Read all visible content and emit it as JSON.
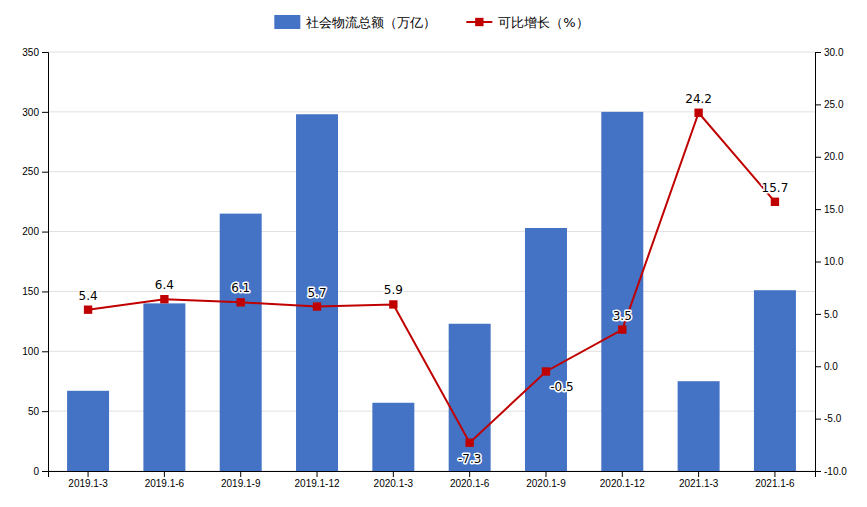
{
  "chart_data": {
    "type": "bar",
    "categories": [
      "2019.1-3",
      "2019.1-6",
      "2019.1-9",
      "2019.1-12",
      "2020.1-3",
      "2020.1-6",
      "2020.1-9",
      "2020.1-12",
      "2021.1-3",
      "2021.1-6"
    ],
    "series": [
      {
        "name": "社会物流总额（万亿）",
        "type": "bar",
        "color": "#4472C4",
        "values": [
          67,
          140,
          215,
          298,
          57,
          123,
          203,
          300,
          75,
          151
        ]
      },
      {
        "name": "可比增长（%）",
        "type": "line",
        "axis": "y2",
        "color": "#C00000",
        "marker": "square",
        "data_labels": true,
        "values": [
          5.4,
          6.4,
          6.1,
          5.7,
          5.9,
          -7.3,
          -0.5,
          3.5,
          24.2,
          15.7
        ]
      }
    ],
    "ylim": [
      0,
      350
    ],
    "yticks": [
      0,
      50,
      100,
      150,
      200,
      250,
      300,
      350
    ],
    "y2lim": [
      -10.0,
      30.0
    ],
    "y2ticks": [
      {
        "value": -10.0,
        "label": "-10.0"
      },
      {
        "value": -5.0,
        "label": "-5.0"
      },
      {
        "value": 0.0,
        "label": "0.0"
      },
      {
        "value": 5.0,
        "label": "5.0"
      },
      {
        "value": 10.0,
        "label": "10.0"
      },
      {
        "value": 15.0,
        "label": "15.0"
      },
      {
        "value": 20.0,
        "label": "20.0"
      },
      {
        "value": 25.0,
        "label": "25.0"
      },
      {
        "value": 30.0,
        "label": "30.0"
      }
    ],
    "grid": true,
    "legend": "top"
  }
}
